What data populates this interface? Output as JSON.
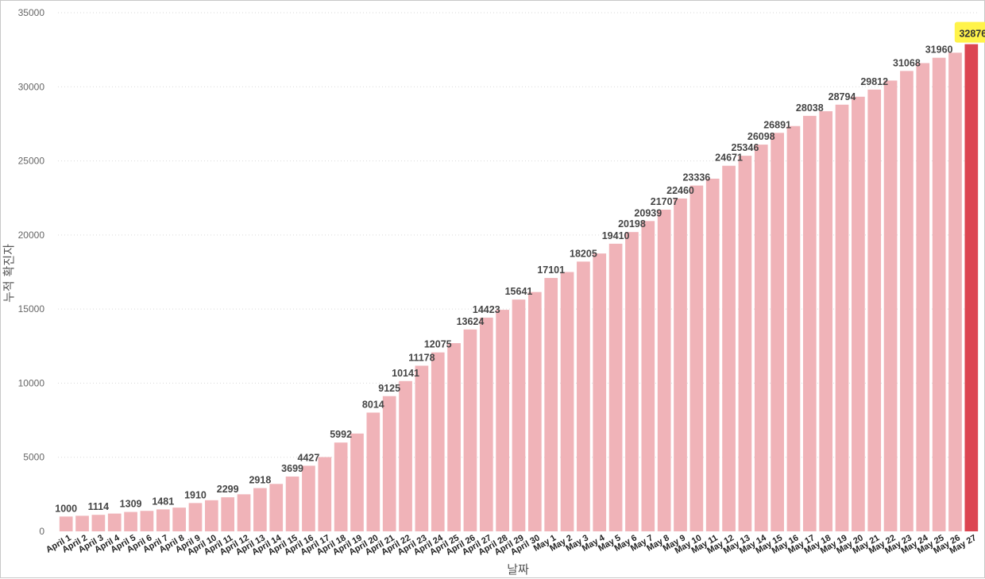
{
  "colors": {
    "bar": "#F0B3B8",
    "bar_highlight": "#DC4551",
    "label_highlight_bg": "#FFF34A",
    "grid": "#D9D9D9"
  },
  "chart_data": {
    "type": "bar",
    "xlabel": "날짜",
    "ylabel": "누적 확진자",
    "ylim": [
      0,
      35000
    ],
    "yticks": [
      0,
      5000,
      10000,
      15000,
      20000,
      25000,
      30000,
      35000
    ],
    "grid": "horizontal dotted",
    "highlight_index": 56,
    "categories": [
      "April 1",
      "April 2",
      "April 3",
      "April 4",
      "April 5",
      "April 6",
      "April 7",
      "April 8",
      "April 9",
      "April 10",
      "April 11",
      "April 12",
      "April 13",
      "April 14",
      "April 15",
      "April 16",
      "April 17",
      "April 18",
      "April 19",
      "April 20",
      "April 21",
      "April 22",
      "April 23",
      "April 24",
      "April 25",
      "April 26",
      "April 27",
      "April 28",
      "April 29",
      "April 30",
      "May 1",
      "May 2",
      "May 3",
      "May 4",
      "May 5",
      "May 6",
      "May 7",
      "May 8",
      "May 9",
      "May 10",
      "May 11",
      "May 12",
      "May 13",
      "May 14",
      "May 15",
      "May 16",
      "May 17",
      "May 18",
      "May 19",
      "May 20",
      "May 21",
      "May 22",
      "May 23",
      "May 24",
      "May 25",
      "May 26",
      "May 27"
    ],
    "values": [
      1000,
      1050,
      1114,
      1200,
      1309,
      1380,
      1481,
      1600,
      1910,
      2100,
      2299,
      2500,
      2918,
      3200,
      3699,
      4427,
      5010,
      5992,
      6600,
      8014,
      9125,
      10141,
      11178,
      12075,
      12700,
      13624,
      14423,
      14950,
      15641,
      16150,
      17101,
      17500,
      18205,
      18750,
      19410,
      20198,
      20939,
      21707,
      22460,
      23336,
      23800,
      24671,
      25346,
      26098,
      26891,
      27350,
      28038,
      28350,
      28794,
      29330,
      29812,
      30420,
      31068,
      31600,
      31960,
      32300,
      32876
    ],
    "data_labels": [
      "1000",
      "",
      "1114",
      "",
      "1309",
      "",
      "1481",
      "",
      "1910",
      "",
      "2299",
      "",
      "2918",
      "",
      "3699",
      "4427",
      "",
      "5992",
      "",
      "8014",
      "9125",
      "10141",
      "11178",
      "12075",
      "",
      "13624",
      "14423",
      "",
      "15641",
      "",
      "17101",
      "",
      "18205",
      "",
      "19410",
      "20198",
      "20939",
      "21707",
      "22460",
      "23336",
      "",
      "24671",
      "25346",
      "26098",
      "26891",
      "",
      "28038",
      "",
      "28794",
      "",
      "29812",
      "",
      "31068",
      "",
      "31960",
      "",
      "32876"
    ]
  }
}
